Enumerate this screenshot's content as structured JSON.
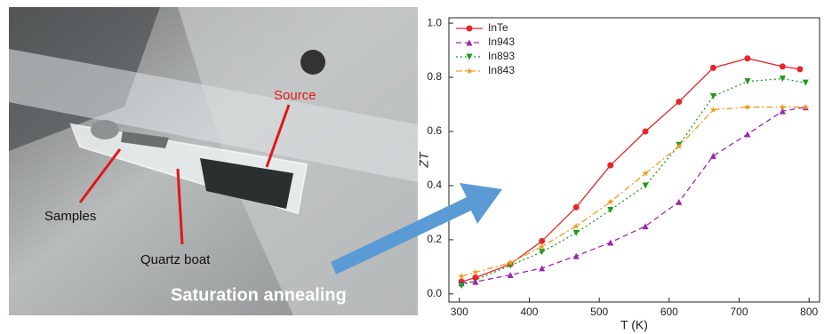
{
  "photo": {
    "labels": {
      "source": "Source",
      "samples": "Samples",
      "boat": "Quartz boat",
      "process": "Saturation annealing"
    }
  },
  "chart_data": {
    "type": "line",
    "x_label": "T (K)",
    "y_label": "ZT",
    "xlim": [
      285,
      815
    ],
    "xticks": [
      300,
      400,
      500,
      600,
      700,
      800
    ],
    "ylim": [
      -0.03,
      1.02
    ],
    "yticks": [
      {
        "value": 0,
        "label": "0.0"
      },
      0.2,
      0.4,
      0.6,
      0.8,
      {
        "value": 1,
        "label": "1.0"
      }
    ],
    "legend": "upper-left",
    "series": [
      {
        "name": "InTe",
        "color": "#e8262a",
        "line_style": "solid",
        "marker": "circle",
        "x": [
          303,
          323,
          373,
          418,
          467,
          516,
          566,
          614,
          663,
          712,
          762,
          787
        ],
        "values": [
          0.045,
          0.06,
          0.11,
          0.195,
          0.32,
          0.475,
          0.6,
          0.71,
          0.835,
          0.87,
          0.84,
          0.83
        ]
      },
      {
        "name": "In943",
        "color": "#9b27af",
        "line_style": "dashed",
        "marker": "triangle-up",
        "x": [
          303,
          323,
          373,
          418,
          467,
          516,
          566,
          614,
          663,
          712,
          762,
          795
        ],
        "values": [
          0.04,
          0.045,
          0.07,
          0.095,
          0.14,
          0.19,
          0.25,
          0.34,
          0.51,
          0.59,
          0.675,
          0.69
        ]
      },
      {
        "name": "In893",
        "color": "#1e9a1e",
        "line_style": "dotted",
        "marker": "triangle-down",
        "x": [
          303,
          373,
          418,
          467,
          516,
          566,
          614,
          663,
          712,
          762,
          795
        ],
        "values": [
          0.03,
          0.105,
          0.155,
          0.225,
          0.31,
          0.4,
          0.55,
          0.73,
          0.785,
          0.795,
          0.78
        ]
      },
      {
        "name": "In843",
        "color": "#f39b1d",
        "line_style": "dashdot",
        "marker": "star",
        "x": [
          303,
          323,
          373,
          418,
          467,
          516,
          566,
          614,
          663,
          712,
          762,
          795
        ],
        "values": [
          0.065,
          0.08,
          0.115,
          0.175,
          0.25,
          0.34,
          0.445,
          0.545,
          0.68,
          0.69,
          0.69,
          0.69
        ]
      }
    ]
  }
}
